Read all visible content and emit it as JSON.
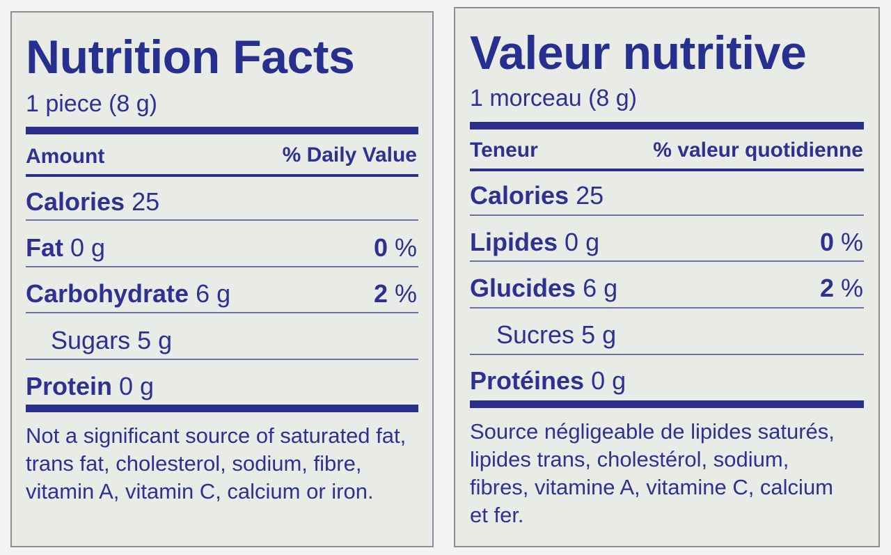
{
  "english": {
    "title": "Nutrition Facts",
    "serving": "1 piece (8 g)",
    "amount_header": "Amount",
    "dv_header": "% Daily Value",
    "rows": [
      {
        "name": "Calories",
        "amount": "25",
        "dv_num": "",
        "dv_sym": ""
      },
      {
        "name": "Fat",
        "amount": "0 g",
        "dv_num": "0",
        "dv_sym": "%"
      },
      {
        "name": "Carbohydrate",
        "amount": "6 g",
        "dv_num": "2",
        "dv_sym": "%"
      },
      {
        "name": "Sugars",
        "amount": "5 g",
        "dv_num": "",
        "dv_sym": ""
      },
      {
        "name": "Protein",
        "amount": "0 g",
        "dv_num": "",
        "dv_sym": ""
      }
    ],
    "note": "Not a significant source of saturated fat, trans fat, cholesterol, sodium, fibre, vitamin A, vitamin C, calcium or iron."
  },
  "french": {
    "title": "Valeur nutritive",
    "serving": "1 morceau (8 g)",
    "amount_header": "Teneur",
    "dv_header": "% valeur quotidienne",
    "rows": [
      {
        "name": "Calories",
        "amount": "25",
        "dv_num": "",
        "dv_sym": ""
      },
      {
        "name": "Lipides",
        "amount": "0 g",
        "dv_num": "0",
        "dv_sym": "%"
      },
      {
        "name": "Glucides",
        "amount": "6 g",
        "dv_num": "2",
        "dv_sym": "%"
      },
      {
        "name": "Sucres",
        "amount": "5 g",
        "dv_num": "",
        "dv_sym": ""
      },
      {
        "name": "Protéines",
        "amount": "0 g",
        "dv_num": "",
        "dv_sym": ""
      }
    ],
    "note": "Source négligeable de lipides saturés, lipides trans, cholestérol, sodium, fibres, vitamine A, vitamine C, calcium et fer."
  },
  "colors": {
    "ink": "#2e3191",
    "panel_bg": "#e9ebe6",
    "border": "#8b8e96"
  }
}
